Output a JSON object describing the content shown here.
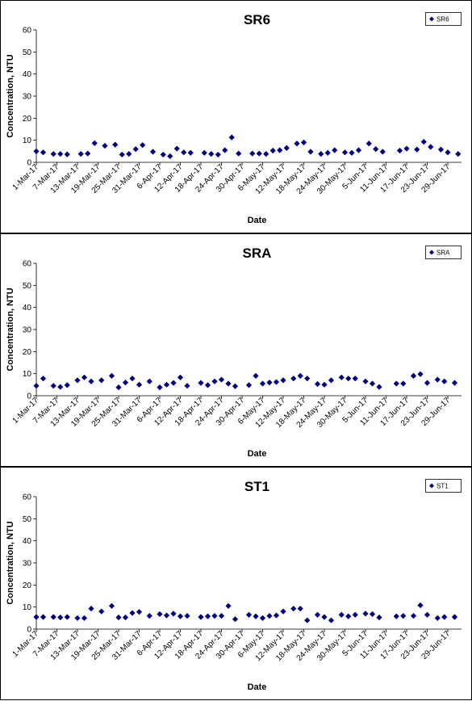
{
  "chart_data": [
    {
      "type": "scatter",
      "title": "SR6",
      "xlabel": "Date",
      "ylabel": "Concentration, NTU",
      "ylim": [
        0,
        60
      ],
      "yticks": [
        "0",
        "10",
        "20",
        "30",
        "40",
        "50",
        "60"
      ],
      "xlim": [
        "2017-03-01",
        "2017-07-03"
      ],
      "xticks": [
        "1-Mar-17",
        "7-Mar-17",
        "13-Mar-17",
        "19-Mar-17",
        "25-Mar-17",
        "31-Mar-17",
        "6-Apr-17",
        "12-Apr-17",
        "18-Apr-17",
        "24-Apr-17",
        "30-Apr-17",
        "6-May-17",
        "12-May-17",
        "18-May-17",
        "24-May-17",
        "30-May-17",
        "5-Jun-17",
        "11-Jun-17",
        "17-Jun-17",
        "23-Jun-17",
        "29-Jun-17"
      ],
      "grid": "none",
      "legend": "top-right",
      "series": [
        {
          "name": "SR6",
          "color": "#000080",
          "marker": "diamond",
          "points": [
            [
              "2017-03-01",
              5.0
            ],
            [
              "2017-03-03",
              4.5
            ],
            [
              "2017-03-06",
              3.8
            ],
            [
              "2017-03-08",
              3.8
            ],
            [
              "2017-03-10",
              3.6
            ],
            [
              "2017-03-14",
              3.8
            ],
            [
              "2017-03-16",
              4.0
            ],
            [
              "2017-03-18",
              8.7
            ],
            [
              "2017-03-21",
              7.5
            ],
            [
              "2017-03-24",
              8.0
            ],
            [
              "2017-03-26",
              3.5
            ],
            [
              "2017-03-28",
              3.8
            ],
            [
              "2017-03-30",
              6.0
            ],
            [
              "2017-04-01",
              7.8
            ],
            [
              "2017-04-04",
              4.8
            ],
            [
              "2017-04-07",
              3.5
            ],
            [
              "2017-04-09",
              2.8
            ],
            [
              "2017-04-11",
              6.2
            ],
            [
              "2017-04-13",
              4.5
            ],
            [
              "2017-04-15",
              4.3
            ],
            [
              "2017-04-19",
              4.3
            ],
            [
              "2017-04-21",
              3.8
            ],
            [
              "2017-04-23",
              3.5
            ],
            [
              "2017-04-25",
              5.5
            ],
            [
              "2017-04-27",
              11.3
            ],
            [
              "2017-04-29",
              4.0
            ],
            [
              "2017-05-03",
              4.0
            ],
            [
              "2017-05-05",
              4.0
            ],
            [
              "2017-05-07",
              3.8
            ],
            [
              "2017-05-09",
              5.3
            ],
            [
              "2017-05-11",
              5.5
            ],
            [
              "2017-05-13",
              6.5
            ],
            [
              "2017-05-16",
              8.5
            ],
            [
              "2017-05-18",
              9.0
            ],
            [
              "2017-05-20",
              4.8
            ],
            [
              "2017-05-23",
              3.8
            ],
            [
              "2017-05-25",
              4.3
            ],
            [
              "2017-05-27",
              5.5
            ],
            [
              "2017-05-30",
              4.5
            ],
            [
              "2017-06-01",
              4.3
            ],
            [
              "2017-06-03",
              5.5
            ],
            [
              "2017-06-06",
              8.5
            ],
            [
              "2017-06-08",
              6.0
            ],
            [
              "2017-06-10",
              4.8
            ],
            [
              "2017-06-15",
              5.3
            ],
            [
              "2017-06-17",
              6.2
            ],
            [
              "2017-06-20",
              5.8
            ],
            [
              "2017-06-22",
              9.3
            ],
            [
              "2017-06-24",
              7.0
            ],
            [
              "2017-06-27",
              5.8
            ],
            [
              "2017-06-29",
              4.5
            ],
            [
              "2017-07-02",
              3.8
            ]
          ]
        }
      ]
    },
    {
      "type": "scatter",
      "title": "SRA",
      "xlabel": "Date",
      "ylabel": "Concentration, NTU",
      "ylim": [
        0,
        60
      ],
      "yticks": [
        "0",
        "10",
        "20",
        "30",
        "40",
        "50",
        "60"
      ],
      "xlim": [
        "2017-03-01",
        "2017-07-03"
      ],
      "xticks": [
        "1-Mar-17",
        "7-Mar-17",
        "13-Mar-17",
        "19-Mar-17",
        "25-Mar-17",
        "31-Mar-17",
        "6-Apr-17",
        "12-Apr-17",
        "18-Apr-17",
        "24-Apr-17",
        "30-Apr-17",
        "6-May-17",
        "12-May-17",
        "18-May-17",
        "24-May-17",
        "30-May-17",
        "5-Jun-17",
        "11-Jun-17",
        "17-Jun-17",
        "23-Jun-17",
        "29-Jun-17"
      ],
      "grid": "none",
      "legend": "top-right",
      "series": [
        {
          "name": "SRA",
          "color": "#000080",
          "marker": "diamond",
          "points": [
            [
              "2017-03-01",
              4.5
            ],
            [
              "2017-03-03",
              7.8
            ],
            [
              "2017-03-06",
              4.5
            ],
            [
              "2017-03-08",
              4.0
            ],
            [
              "2017-03-10",
              4.8
            ],
            [
              "2017-03-13",
              7.0
            ],
            [
              "2017-03-15",
              8.3
            ],
            [
              "2017-03-17",
              6.5
            ],
            [
              "2017-03-20",
              7.0
            ],
            [
              "2017-03-23",
              9.0
            ],
            [
              "2017-03-25",
              3.8
            ],
            [
              "2017-03-27",
              6.0
            ],
            [
              "2017-03-29",
              7.8
            ],
            [
              "2017-03-31",
              5.0
            ],
            [
              "2017-04-03",
              6.5
            ],
            [
              "2017-04-06",
              3.8
            ],
            [
              "2017-04-08",
              5.0
            ],
            [
              "2017-04-10",
              5.8
            ],
            [
              "2017-04-12",
              8.3
            ],
            [
              "2017-04-14",
              4.5
            ],
            [
              "2017-04-18",
              5.8
            ],
            [
              "2017-04-20",
              4.8
            ],
            [
              "2017-04-22",
              6.5
            ],
            [
              "2017-04-24",
              7.3
            ],
            [
              "2017-04-26",
              5.5
            ],
            [
              "2017-04-28",
              4.3
            ],
            [
              "2017-05-02",
              4.8
            ],
            [
              "2017-05-04",
              9.0
            ],
            [
              "2017-05-06",
              5.5
            ],
            [
              "2017-05-08",
              6.0
            ],
            [
              "2017-05-10",
              6.2
            ],
            [
              "2017-05-12",
              7.0
            ],
            [
              "2017-05-15",
              7.8
            ],
            [
              "2017-05-17",
              9.0
            ],
            [
              "2017-05-19",
              7.8
            ],
            [
              "2017-05-22",
              5.3
            ],
            [
              "2017-05-24",
              5.0
            ],
            [
              "2017-05-26",
              7.0
            ],
            [
              "2017-05-29",
              8.3
            ],
            [
              "2017-05-31",
              7.8
            ],
            [
              "2017-06-02",
              7.8
            ],
            [
              "2017-06-05",
              6.5
            ],
            [
              "2017-06-07",
              5.5
            ],
            [
              "2017-06-09",
              4.0
            ],
            [
              "2017-06-14",
              5.5
            ],
            [
              "2017-06-16",
              5.5
            ],
            [
              "2017-06-19",
              9.0
            ],
            [
              "2017-06-21",
              9.8
            ],
            [
              "2017-06-23",
              5.8
            ],
            [
              "2017-06-26",
              7.3
            ],
            [
              "2017-06-28",
              6.5
            ],
            [
              "2017-07-01",
              5.8
            ]
          ]
        }
      ]
    },
    {
      "type": "scatter",
      "title": "ST1",
      "xlabel": "Date",
      "ylabel": "Concentration, NTU",
      "ylim": [
        0,
        60
      ],
      "yticks": [
        "0",
        "10",
        "20",
        "30",
        "40",
        "50",
        "60"
      ],
      "xlim": [
        "2017-03-01",
        "2017-07-03"
      ],
      "xticks": [
        "1-Mar-17",
        "7-Mar-17",
        "13-Mar-17",
        "19-Mar-17",
        "25-Mar-17",
        "31-Mar-17",
        "6-Apr-17",
        "12-Apr-17",
        "18-Apr-17",
        "24-Apr-17",
        "30-Apr-17",
        "6-May-17",
        "12-May-17",
        "18-May-17",
        "24-May-17",
        "30-May-17",
        "5-Jun-17",
        "11-Jun-17",
        "17-Jun-17",
        "23-Jun-17",
        "29-Jun-17"
      ],
      "grid": "none",
      "legend": "top-right",
      "series": [
        {
          "name": "ST1",
          "color": "#000080",
          "marker": "diamond",
          "points": [
            [
              "2017-03-01",
              5.5
            ],
            [
              "2017-03-03",
              5.5
            ],
            [
              "2017-03-06",
              5.5
            ],
            [
              "2017-03-08",
              5.3
            ],
            [
              "2017-03-10",
              5.5
            ],
            [
              "2017-03-13",
              5.0
            ],
            [
              "2017-03-15",
              5.0
            ],
            [
              "2017-03-17",
              9.3
            ],
            [
              "2017-03-20",
              8.0
            ],
            [
              "2017-03-23",
              10.5
            ],
            [
              "2017-03-25",
              5.3
            ],
            [
              "2017-03-27",
              5.3
            ],
            [
              "2017-03-29",
              7.3
            ],
            [
              "2017-03-31",
              7.8
            ],
            [
              "2017-04-03",
              6.0
            ],
            [
              "2017-04-06",
              6.8
            ],
            [
              "2017-04-08",
              6.2
            ],
            [
              "2017-04-10",
              7.0
            ],
            [
              "2017-04-12",
              5.8
            ],
            [
              "2017-04-14",
              6.0
            ],
            [
              "2017-04-18",
              5.5
            ],
            [
              "2017-04-20",
              5.8
            ],
            [
              "2017-04-22",
              6.0
            ],
            [
              "2017-04-24",
              6.0
            ],
            [
              "2017-04-26",
              10.5
            ],
            [
              "2017-04-28",
              4.5
            ],
            [
              "2017-05-02",
              6.5
            ],
            [
              "2017-05-04",
              5.8
            ],
            [
              "2017-05-06",
              5.0
            ],
            [
              "2017-05-08",
              6.0
            ],
            [
              "2017-05-10",
              6.2
            ],
            [
              "2017-05-12",
              8.0
            ],
            [
              "2017-05-15",
              9.3
            ],
            [
              "2017-05-17",
              9.3
            ],
            [
              "2017-05-19",
              4.0
            ],
            [
              "2017-05-22",
              6.5
            ],
            [
              "2017-05-24",
              5.5
            ],
            [
              "2017-05-26",
              4.0
            ],
            [
              "2017-05-29",
              6.5
            ],
            [
              "2017-05-31",
              5.8
            ],
            [
              "2017-06-02",
              6.5
            ],
            [
              "2017-06-05",
              7.0
            ],
            [
              "2017-06-07",
              6.8
            ],
            [
              "2017-06-09",
              5.3
            ],
            [
              "2017-06-14",
              5.8
            ],
            [
              "2017-06-16",
              6.0
            ],
            [
              "2017-06-19",
              6.0
            ],
            [
              "2017-06-21",
              10.8
            ],
            [
              "2017-06-23",
              6.5
            ],
            [
              "2017-06-26",
              5.0
            ],
            [
              "2017-06-28",
              5.5
            ],
            [
              "2017-07-01",
              5.5
            ]
          ]
        }
      ]
    }
  ]
}
